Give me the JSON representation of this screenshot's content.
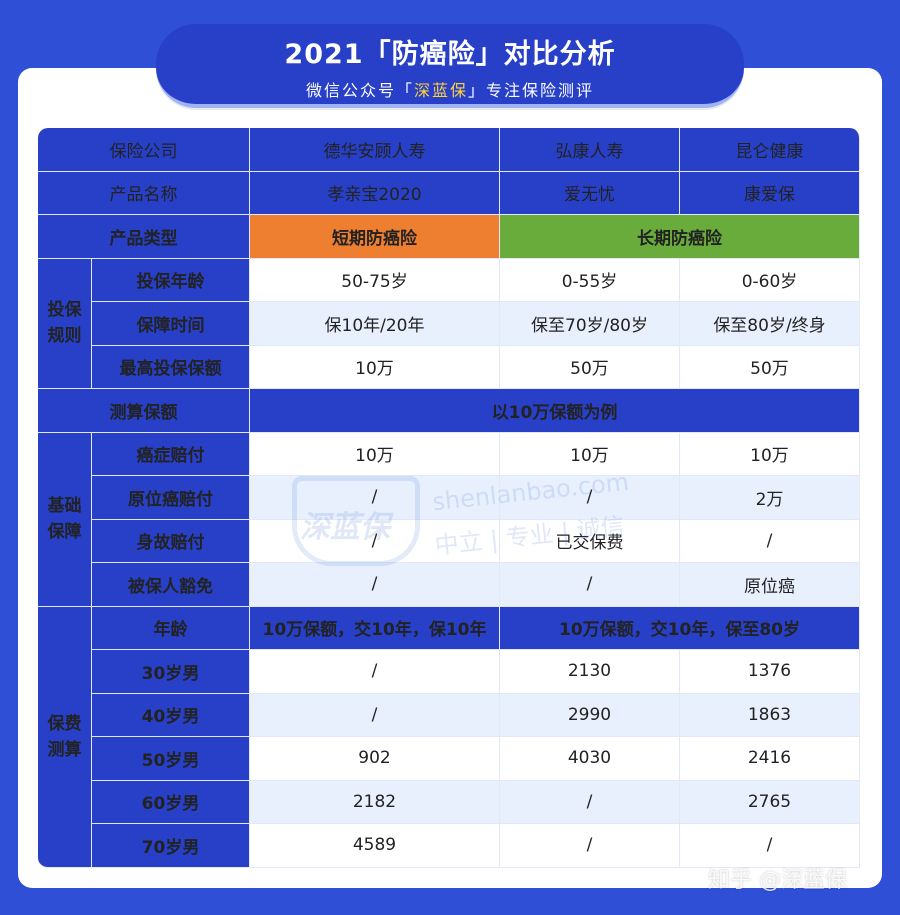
{
  "header": {
    "title": "2021「防癌险」对比分析",
    "subtitle_prefix": "微信公众号「",
    "subtitle_brand": "深蓝保",
    "subtitle_suffix": "」专注保险测评"
  },
  "table": {
    "company_label": "保险公司",
    "companies": [
      "德华安顾人寿",
      "弘康人寿",
      "昆仑健康"
    ],
    "product_label": "产品名称",
    "products": [
      "孝亲宝2020",
      "爱无忧",
      "康爱保"
    ],
    "type_label": "产品类型",
    "type_short": "短期防癌险",
    "type_long": "长期防癌险",
    "section_rules": "投保规则",
    "rules": [
      {
        "label": "投保年龄",
        "values": [
          "50-75岁",
          "0-55岁",
          "0-60岁"
        ]
      },
      {
        "label": "保障时间",
        "values": [
          "保10年/20年",
          "保至70岁/80岁",
          "保至80岁/终身"
        ]
      },
      {
        "label": "最高投保保额",
        "values": [
          "10万",
          "50万",
          "50万"
        ]
      }
    ],
    "calc_label": "测算保额",
    "calc_value": "以10万保额为例",
    "section_basic": "基础保障",
    "basic": [
      {
        "label": "癌症赔付",
        "values": [
          "10万",
          "10万",
          "10万"
        ]
      },
      {
        "label": "原位癌赔付",
        "values": [
          "/",
          "/",
          "2万"
        ]
      },
      {
        "label": "身故赔付",
        "values": [
          "/",
          "已交保费",
          "/"
        ]
      },
      {
        "label": "被保人豁免",
        "values": [
          "/",
          "/",
          "原位癌"
        ]
      }
    ],
    "section_premium": "保费测算",
    "age_label": "年龄",
    "premium_note_short": "10万保额，交10年，保10年",
    "premium_note_long": "10万保额，交10年，保至80岁",
    "premiums": [
      {
        "label": "30岁男",
        "values": [
          "/",
          "2130",
          "1376"
        ]
      },
      {
        "label": "40岁男",
        "values": [
          "/",
          "2990",
          "1863"
        ]
      },
      {
        "label": "50岁男",
        "values": [
          "902",
          "4030",
          "2416"
        ]
      },
      {
        "label": "60岁男",
        "values": [
          "2182",
          "/",
          "2765"
        ]
      },
      {
        "label": "70岁男",
        "values": [
          "4589",
          "/",
          "/"
        ]
      }
    ]
  },
  "watermark": {
    "logo": "深蓝保",
    "domain": "shenlanbao.com",
    "slogan": "中立 | 专业 | 诚信"
  },
  "footer": {
    "credit": "知乎 @深蓝保"
  },
  "colors": {
    "background": "#2e4fd6",
    "header_blue": "#2740c7",
    "accent_yellow": "#ffd23a",
    "short_term": "#ef7f30",
    "long_term": "#6aac3c",
    "row_stripe": "#e8f0fd"
  }
}
